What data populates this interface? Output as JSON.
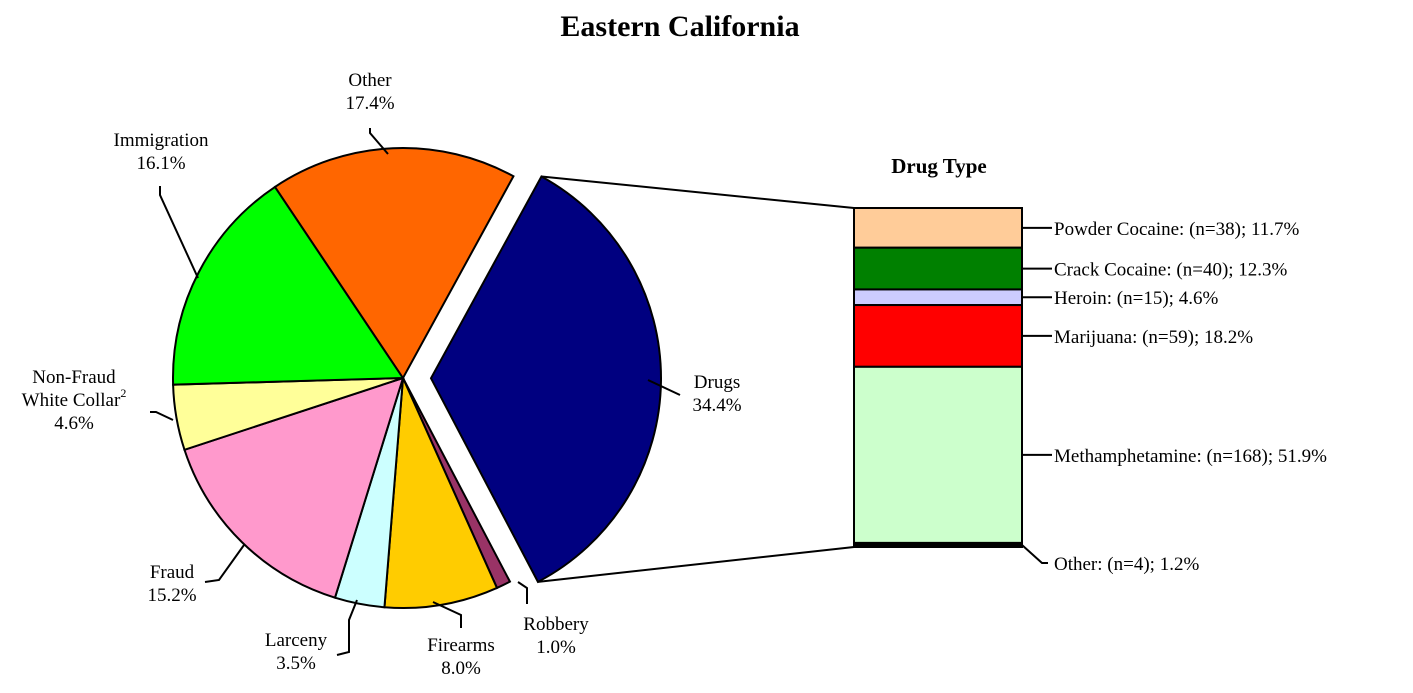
{
  "chart_data": {
    "type": "pie",
    "title": "Eastern California",
    "pie": {
      "slices": [
        {
          "name": "Drugs",
          "value": 34.4,
          "label": "34.4%",
          "color": "#000080",
          "exploded": true
        },
        {
          "name": "Robbery",
          "value": 1.0,
          "label": "1.0%",
          "color": "#993366"
        },
        {
          "name": "Firearms",
          "value": 8.0,
          "label": "8.0%",
          "color": "#FFCC00"
        },
        {
          "name": "Larceny",
          "value": 3.5,
          "label": "3.5%",
          "color": "#CCFFFF"
        },
        {
          "name": "Fraud",
          "value": 15.2,
          "label": "15.2%",
          "color": "#FF99CC"
        },
        {
          "name": "Non-Fraud",
          "name2": "White Collar",
          "sup": "2",
          "value": 4.6,
          "label": "4.6%",
          "color": "#FFFF99"
        },
        {
          "name": "Immigration",
          "value": 16.1,
          "label": "16.1%",
          "color": "#00FF00"
        },
        {
          "name": "Other",
          "value": 17.4,
          "label": "17.4%",
          "color": "#FF6600"
        }
      ]
    },
    "breakdown": {
      "title": "Drug Type",
      "segments": [
        {
          "name": "Powder Cocaine",
          "n": 38,
          "value": 11.7,
          "label": "Powder Cocaine: (n=38); 11.7%",
          "color": "#FFCC99"
        },
        {
          "name": "Crack Cocaine",
          "n": 40,
          "value": 12.3,
          "label": "Crack Cocaine: (n=40); 12.3%",
          "color": "#008000"
        },
        {
          "name": "Heroin",
          "n": 15,
          "value": 4.6,
          "label": "Heroin: (n=15); 4.6%",
          "color": "#CCCCFF"
        },
        {
          "name": "Marijuana",
          "n": 59,
          "value": 18.2,
          "label": "Marijuana: (n=59); 18.2%",
          "color": "#FF0000"
        },
        {
          "name": "Methamphetamine",
          "n": 168,
          "value": 51.9,
          "label": "Methamphetamine: (n=168); 51.9%",
          "color": "#CCFFCC"
        },
        {
          "name": "Other",
          "n": 4,
          "value": 1.2,
          "label": "Other: (n=4); 1.2%",
          "color": "#000000"
        }
      ]
    }
  }
}
